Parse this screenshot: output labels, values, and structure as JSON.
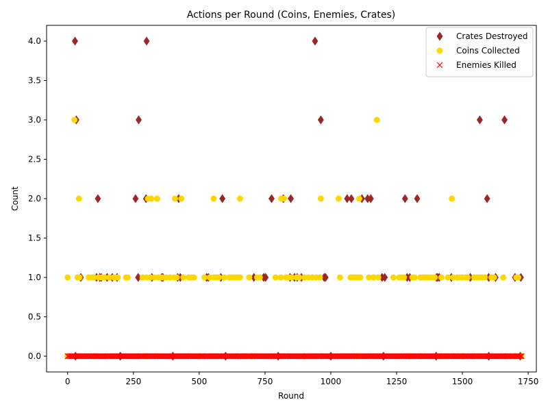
{
  "chart_data": {
    "type": "scatter",
    "title": "Actions per Round (Coins, Enemies, Crates)",
    "xlabel": "Round",
    "ylabel": "Count",
    "xlim": [
      -80,
      1781
    ],
    "ylim": [
      -0.2,
      4.2
    ],
    "xticks": [
      0,
      250,
      500,
      750,
      1000,
      1250,
      1500,
      1750
    ],
    "yticks": [
      0.0,
      0.5,
      1.0,
      1.5,
      2.0,
      2.5,
      3.0,
      3.5,
      4.0
    ],
    "yticks_format": 1,
    "grid": false,
    "legend_position": "upper right",
    "series": [
      {
        "name": "Crates Destroyed",
        "marker": "diamond",
        "color": "#9b2727",
        "points": [
          [
            28,
            4
          ],
          [
            300,
            4
          ],
          [
            940,
            4
          ],
          [
            33,
            3
          ],
          [
            270,
            3
          ],
          [
            962,
            3
          ],
          [
            1566,
            3
          ],
          [
            1660,
            3
          ],
          [
            115,
            2
          ],
          [
            258,
            2
          ],
          [
            298,
            2
          ],
          [
            422,
            2
          ],
          [
            588,
            2
          ],
          [
            775,
            2
          ],
          [
            820,
            2
          ],
          [
            848,
            2
          ],
          [
            1062,
            2
          ],
          [
            1078,
            2
          ],
          [
            1118,
            2
          ],
          [
            1140,
            2
          ],
          [
            1152,
            2
          ],
          [
            1282,
            2
          ],
          [
            1328,
            2
          ],
          [
            1594,
            2
          ],
          [
            50,
            1
          ],
          [
            110,
            1
          ],
          [
            122,
            1
          ],
          [
            128,
            1
          ],
          [
            150,
            1
          ],
          [
            170,
            1
          ],
          [
            188,
            1
          ],
          [
            268,
            1
          ],
          [
            320,
            1
          ],
          [
            358,
            1
          ],
          [
            362,
            1
          ],
          [
            418,
            1
          ],
          [
            428,
            1
          ],
          [
            528,
            1
          ],
          [
            535,
            1
          ],
          [
            582,
            1
          ],
          [
            708,
            1
          ],
          [
            745,
            1
          ],
          [
            752,
            1
          ],
          [
            845,
            1
          ],
          [
            862,
            1
          ],
          [
            872,
            1
          ],
          [
            888,
            1
          ],
          [
            975,
            1
          ],
          [
            980,
            1
          ],
          [
            1195,
            1
          ],
          [
            1205,
            1
          ],
          [
            1290,
            1
          ],
          [
            1300,
            1
          ],
          [
            1402,
            1
          ],
          [
            1406,
            1
          ],
          [
            1412,
            1
          ],
          [
            1458,
            1
          ],
          [
            1530,
            1
          ],
          [
            1600,
            1
          ],
          [
            1626,
            1
          ],
          [
            1700,
            1
          ],
          [
            1722,
            1
          ],
          [
            30,
            0
          ],
          [
            200,
            0
          ],
          [
            400,
            0
          ],
          [
            600,
            0
          ],
          [
            800,
            0
          ],
          [
            1000,
            0
          ],
          [
            1200,
            0
          ],
          [
            1400,
            0
          ],
          [
            1600,
            0
          ],
          [
            1720,
            0
          ]
        ]
      },
      {
        "name": "Coins Collected",
        "marker": "circle",
        "color": "#ffd700",
        "points": [
          [
            26,
            3
          ],
          [
            1175,
            3
          ],
          [
            43,
            2
          ],
          [
            305,
            2
          ],
          [
            318,
            2
          ],
          [
            340,
            2
          ],
          [
            408,
            2
          ],
          [
            432,
            2
          ],
          [
            555,
            2
          ],
          [
            655,
            2
          ],
          [
            812,
            2
          ],
          [
            822,
            2
          ],
          [
            962,
            2
          ],
          [
            1030,
            2
          ],
          [
            1108,
            2
          ],
          [
            1460,
            2
          ],
          [
            0,
            1
          ],
          [
            38,
            1
          ],
          [
            45,
            1
          ],
          [
            80,
            1
          ],
          [
            92,
            1
          ],
          [
            100,
            1
          ],
          [
            118,
            1
          ],
          [
            130,
            1
          ],
          [
            140,
            1
          ],
          [
            158,
            1
          ],
          [
            175,
            1
          ],
          [
            190,
            1
          ],
          [
            222,
            1
          ],
          [
            228,
            1
          ],
          [
            285,
            1
          ],
          [
            300,
            1
          ],
          [
            315,
            1
          ],
          [
            330,
            1
          ],
          [
            345,
            1
          ],
          [
            360,
            1
          ],
          [
            375,
            1
          ],
          [
            390,
            1
          ],
          [
            405,
            1
          ],
          [
            415,
            1
          ],
          [
            440,
            1
          ],
          [
            460,
            1
          ],
          [
            470,
            1
          ],
          [
            480,
            1
          ],
          [
            520,
            1
          ],
          [
            540,
            1
          ],
          [
            555,
            1
          ],
          [
            565,
            1
          ],
          [
            575,
            1
          ],
          [
            595,
            1
          ],
          [
            615,
            1
          ],
          [
            625,
            1
          ],
          [
            635,
            1
          ],
          [
            645,
            1
          ],
          [
            655,
            1
          ],
          [
            690,
            1
          ],
          [
            720,
            1
          ],
          [
            730,
            1
          ],
          [
            790,
            1
          ],
          [
            810,
            1
          ],
          [
            830,
            1
          ],
          [
            840,
            1
          ],
          [
            852,
            1
          ],
          [
            870,
            1
          ],
          [
            880,
            1
          ],
          [
            900,
            1
          ],
          [
            915,
            1
          ],
          [
            930,
            1
          ],
          [
            945,
            1
          ],
          [
            958,
            1
          ],
          [
            1035,
            1
          ],
          [
            1075,
            1
          ],
          [
            1085,
            1
          ],
          [
            1095,
            1
          ],
          [
            1102,
            1
          ],
          [
            1112,
            1
          ],
          [
            1145,
            1
          ],
          [
            1162,
            1
          ],
          [
            1180,
            1
          ],
          [
            1238,
            1
          ],
          [
            1260,
            1
          ],
          [
            1268,
            1
          ],
          [
            1278,
            1
          ],
          [
            1310,
            1
          ],
          [
            1318,
            1
          ],
          [
            1340,
            1
          ],
          [
            1350,
            1
          ],
          [
            1360,
            1
          ],
          [
            1370,
            1
          ],
          [
            1378,
            1
          ],
          [
            1385,
            1
          ],
          [
            1395,
            1
          ],
          [
            1420,
            1
          ],
          [
            1445,
            1
          ],
          [
            1465,
            1
          ],
          [
            1480,
            1
          ],
          [
            1490,
            1
          ],
          [
            1500,
            1
          ],
          [
            1512,
            1
          ],
          [
            1520,
            1
          ],
          [
            1545,
            1
          ],
          [
            1555,
            1
          ],
          [
            1565,
            1
          ],
          [
            1575,
            1
          ],
          [
            1585,
            1
          ],
          [
            1610,
            1
          ],
          [
            1620,
            1
          ],
          [
            1655,
            1
          ],
          [
            1705,
            1
          ],
          [
            1712,
            1
          ],
          [
            0,
            0
          ],
          [
            100,
            0
          ],
          [
            300,
            0
          ],
          [
            500,
            0
          ],
          [
            700,
            0
          ],
          [
            900,
            0
          ],
          [
            1100,
            0
          ],
          [
            1300,
            0
          ],
          [
            1500,
            0
          ],
          [
            1700,
            0
          ],
          [
            1725,
            0
          ]
        ]
      },
      {
        "name": "Enemies Killed",
        "marker": "x",
        "color": "#ff0000",
        "points": [],
        "dense_zero_range": [
          0,
          1725
        ],
        "dense_zero_step": 5
      }
    ]
  }
}
